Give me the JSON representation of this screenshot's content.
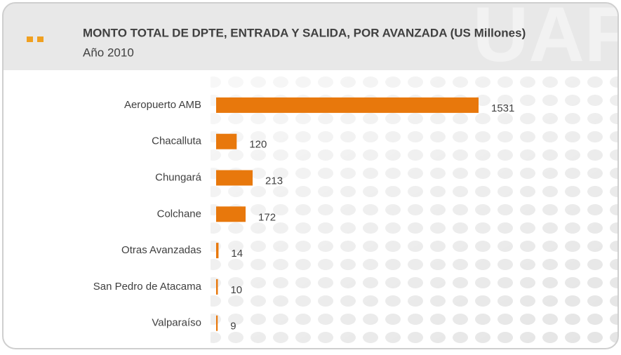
{
  "chart_data": {
    "type": "bar",
    "orientation": "horizontal",
    "title": "MONTO TOTAL DE DPTE, ENTRADA Y SALIDA, POR AVANZADA (US Millones)",
    "subtitle": "Año 2010",
    "watermark": "UAF",
    "categories": [
      "Aeropuerto AMB",
      "Chacalluta",
      "Chungará",
      "Colchane",
      "Otras Avanzadas",
      "San Pedro de Atacama",
      "Valparaíso"
    ],
    "values": [
      1531,
      120,
      213,
      172,
      14,
      10,
      9
    ],
    "color": "#e8780c"
  }
}
